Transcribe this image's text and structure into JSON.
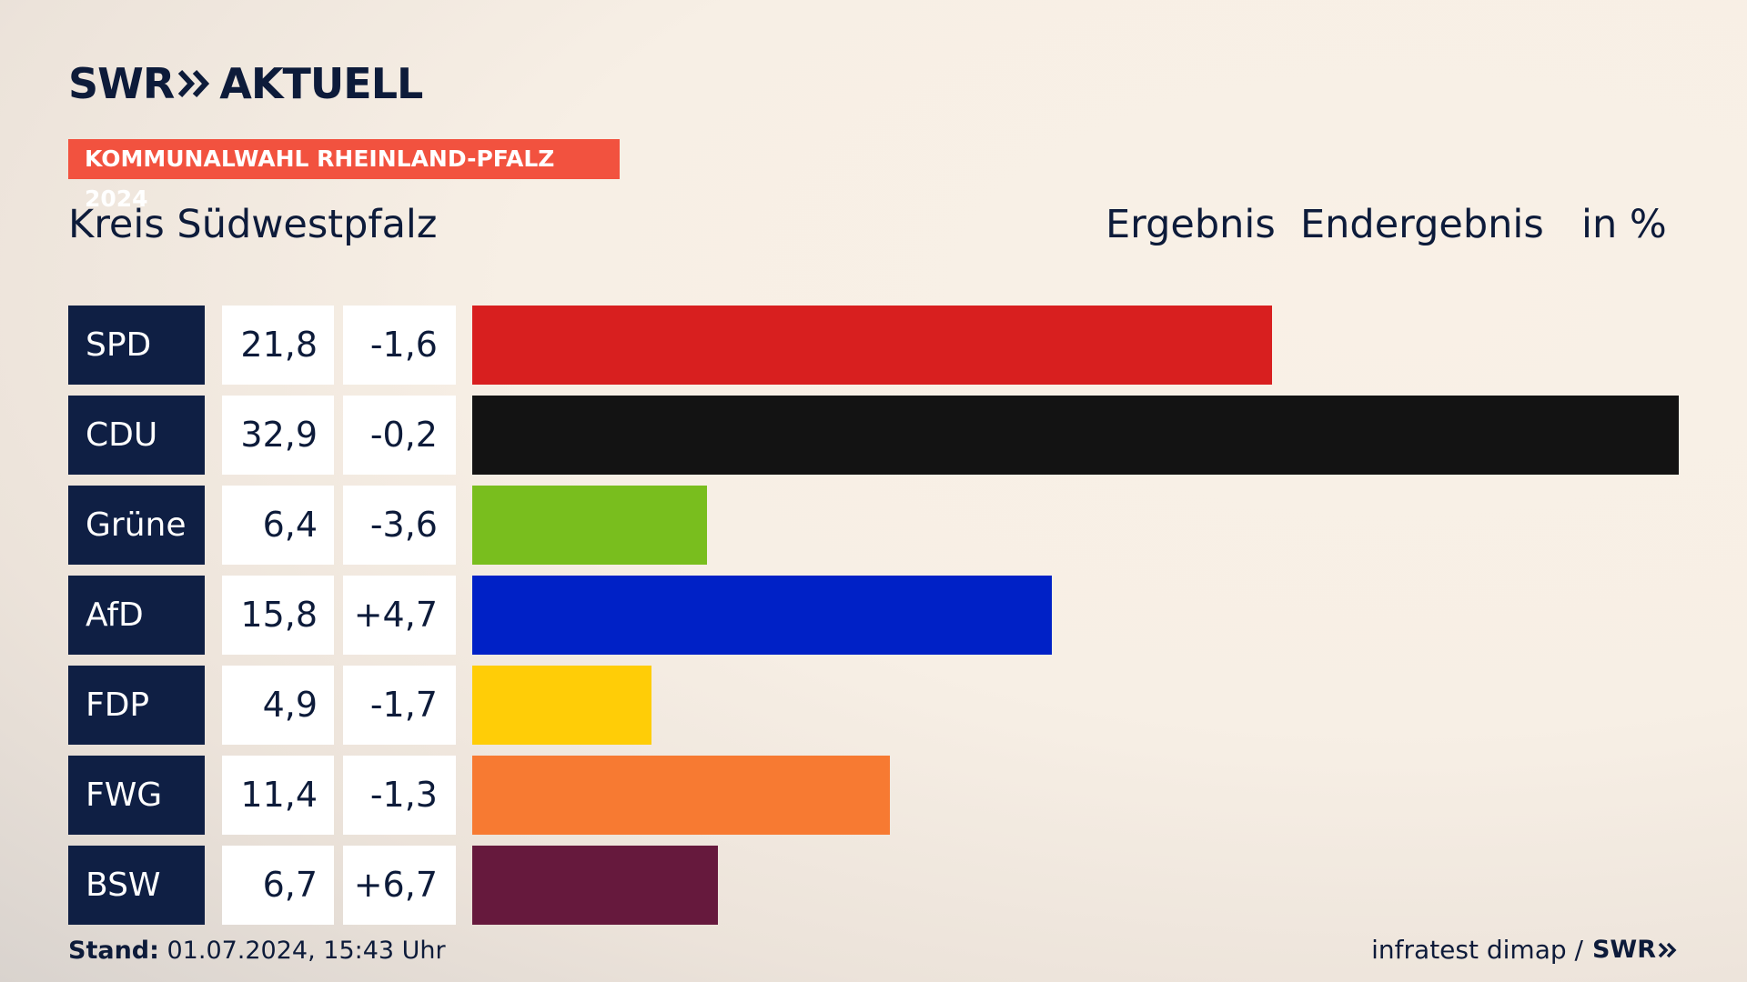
{
  "header": {
    "logo_text_1": "SWR",
    "logo_text_2": "AKTUELL",
    "tag": "KOMMUNALWAHL RHEINLAND-PFALZ 2024",
    "region": "Kreis Südwestpfalz",
    "col_ergebnis": "Ergebnis",
    "col_status": "Endergebnis",
    "col_unit": "in %"
  },
  "chart_data": {
    "type": "bar",
    "title": "Kreis Südwestpfalz",
    "categories": [
      "SPD",
      "CDU",
      "Grüne",
      "AfD",
      "FDP",
      "FWG",
      "BSW"
    ],
    "values": [
      21.8,
      32.9,
      6.4,
      15.8,
      4.9,
      11.4,
      6.7
    ],
    "value_labels": [
      "21,8",
      "32,9",
      "6,4",
      "15,8",
      "4,9",
      "11,4",
      "6,7"
    ],
    "diff_labels": [
      "-1,6",
      "-0,2",
      "-3,6",
      "+4,7",
      "-1,7",
      "-1,3",
      "+6,7"
    ],
    "colors": [
      "#d81f1f",
      "#131313",
      "#79be1e",
      "#0021c6",
      "#ffcd07",
      "#f77a32",
      "#66193d"
    ],
    "max_value": 32.9
  },
  "footer": {
    "stand_label": "Stand:",
    "stand_value": " 01.07.2024, 15:43 Uhr",
    "source": "infratest dimap /",
    "logo": "SWR"
  }
}
